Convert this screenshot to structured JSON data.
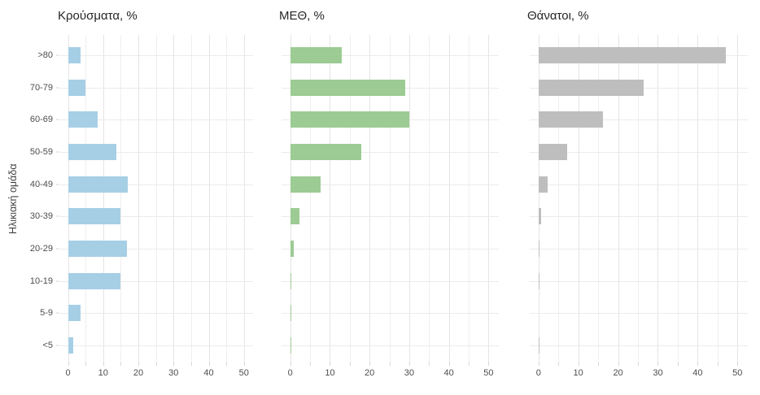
{
  "chart_data": {
    "type": "bar",
    "orientation": "horizontal",
    "panel_layout": "faceted",
    "y_axis_title": "Ηλικιακή ομάδα",
    "categories": [
      ">80",
      "70-79",
      "60-69",
      "50-59",
      "40-49",
      "30-39",
      "20-29",
      "10-19",
      "5-9",
      "<5"
    ],
    "x_ticks": [
      0,
      10,
      20,
      30,
      40,
      50
    ],
    "xlim": [
      0,
      50
    ],
    "minor_grid_step": 5,
    "grid": true,
    "series": [
      {
        "name": "Κρούσματα, %",
        "color": "#a6cfe6",
        "values": [
          3.6,
          5.0,
          8.4,
          13.8,
          17.1,
          14.9,
          16.8,
          14.9,
          3.6,
          1.6
        ]
      },
      {
        "name": "ΜΕΘ, %",
        "color": "#9ccb93",
        "values": [
          13.0,
          29.0,
          30.0,
          18.0,
          7.6,
          2.3,
          0.8,
          0.2,
          0.15,
          0.15
        ]
      },
      {
        "name": "Θάνατοι, %",
        "color": "#bebebe",
        "values": [
          47.0,
          26.5,
          16.2,
          7.3,
          2.2,
          0.6,
          0.15,
          0.15,
          0,
          0.1
        ]
      }
    ]
  }
}
